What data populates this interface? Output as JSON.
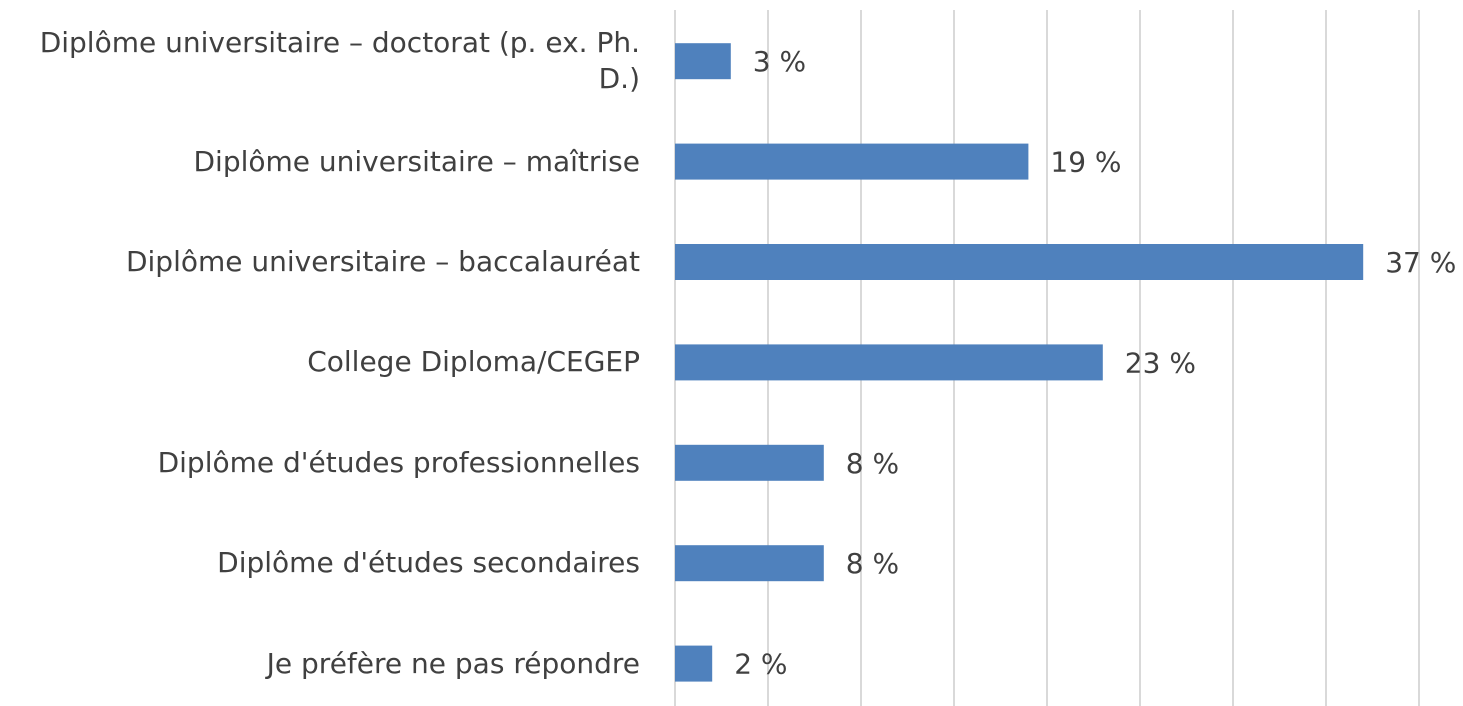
{
  "chart_data": {
    "type": "bar",
    "orientation": "horizontal",
    "categories": [
      "Diplôme universitaire – doctorat (p. ex. Ph. D.)",
      "Diplôme universitaire – maîtrise",
      "Diplôme universitaire – baccalauréat",
      "College Diploma/CEGEP",
      "Diplôme d'études professionnelles",
      "Diplôme d'études secondaires",
      "Je préfère ne pas répondre"
    ],
    "values": [
      3,
      19,
      37,
      23,
      8,
      8,
      2
    ],
    "value_labels": [
      "3 %",
      "19 %",
      "37 %",
      "23 %",
      "8 %",
      "8 %",
      "2 %"
    ],
    "color": "#4f81bd",
    "xlim": [
      0,
      40
    ],
    "xticks": [
      0,
      5,
      10,
      15,
      20,
      25,
      30,
      35,
      40
    ],
    "grid": true
  }
}
